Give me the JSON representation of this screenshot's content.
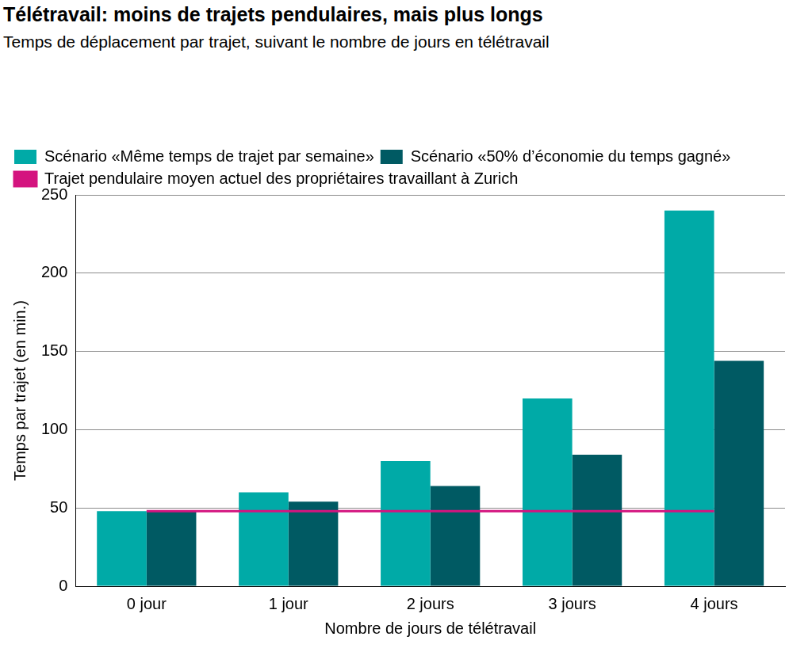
{
  "chart_data": {
    "type": "bar",
    "title": "Télétravail: moins de trajets pendulaires, mais plus longs",
    "subtitle": "Temps de déplacement par trajet, suivant le nombre de jours en télétravail",
    "x_label": "Nombre de jours de télétravail",
    "y_label": "Temps par trajet (en min.)",
    "categories": [
      "0 jour",
      "1 jour",
      "2 jours",
      "3 jours",
      "4 jours"
    ],
    "series": [
      {
        "name": "Scénario «Même temps de trajet par semaine»",
        "color": "#00aaa7",
        "type": "bar",
        "values": [
          48,
          60,
          80,
          120,
          240
        ]
      },
      {
        "name": "Scénario «50% d’économie du temps gagné»",
        "color": "#005a63",
        "type": "bar",
        "values": [
          48,
          54,
          64,
          84,
          144
        ]
      },
      {
        "name": "Trajet pendulaire moyen actuel des propriétaires travaillant à Zurich",
        "color": "#d4147f",
        "type": "line",
        "values": [
          48,
          48,
          48,
          48,
          48
        ]
      }
    ],
    "ylim": [
      0,
      250
    ],
    "yticks": [
      0,
      50,
      100,
      150,
      200,
      250
    ],
    "grid": true,
    "legend": "top-left"
  }
}
